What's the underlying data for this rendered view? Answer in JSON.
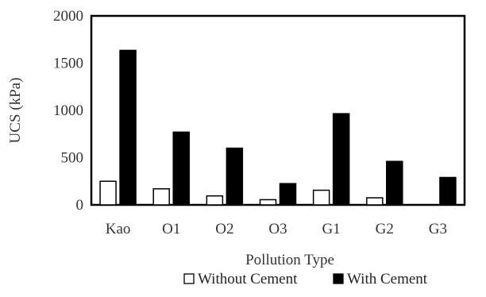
{
  "chart_data": {
    "type": "bar",
    "categories": [
      "Kao",
      "O1",
      "O2",
      "O3",
      "G1",
      "G2",
      "G3"
    ],
    "series": [
      {
        "name": "Without Cement",
        "values": [
          250,
          170,
          95,
          55,
          155,
          75,
          0
        ],
        "color": "#ffffff",
        "stroke": "#000000"
      },
      {
        "name": "With Cement",
        "values": [
          1635,
          770,
          600,
          225,
          965,
          460,
          290
        ],
        "color": "#000000",
        "stroke": "#000000"
      }
    ],
    "xlabel": "Pollution Type",
    "ylabel": "UCS (kPa)",
    "ylim": [
      0,
      2000
    ],
    "yticks": [
      0,
      500,
      1000,
      1500,
      2000
    ],
    "grid": false,
    "legend_position": "bottom-center"
  }
}
